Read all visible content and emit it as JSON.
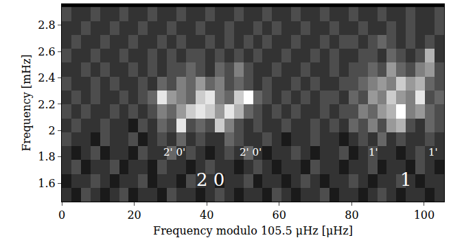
{
  "chart_data": {
    "type": "heatmap",
    "x_label": "Frequency modulo 105.5 μHz [μHz]",
    "y_label": "Frequency [mHz]",
    "xlim": [
      0,
      105.5
    ],
    "ylim": [
      1.46,
      2.96
    ],
    "xticks": [
      0,
      20,
      40,
      60,
      80,
      100
    ],
    "yticks": [
      1.6,
      1.8,
      2,
      2.2,
      2.4,
      2.6,
      2.8
    ],
    "x": [
      1.32,
      3.96,
      6.59,
      9.23,
      11.87,
      14.51,
      17.14,
      19.78,
      22.42,
      25.06,
      27.69,
      30.33,
      32.97,
      35.61,
      38.24,
      40.88,
      43.52,
      46.16,
      48.79,
      51.43,
      54.07,
      56.71,
      59.34,
      61.98,
      64.62,
      67.26,
      69.89,
      72.53,
      75.17,
      77.81,
      80.44,
      83.08,
      85.72,
      88.36,
      90.99,
      93.63,
      96.27,
      98.91,
      101.54,
      104.18
    ],
    "y": [
      1.513,
      1.619,
      1.724,
      1.83,
      1.935,
      2.041,
      2.146,
      2.252,
      2.357,
      2.463,
      2.568,
      2.674,
      2.779,
      2.885
    ],
    "z": [
      [
        2,
        1,
        3,
        2,
        1,
        2,
        3,
        1,
        2,
        2,
        1,
        3,
        2,
        2,
        1,
        2,
        3,
        2,
        1,
        2,
        2,
        1,
        3,
        2,
        1,
        2,
        2,
        3,
        1,
        2,
        2,
        1,
        2,
        3,
        2,
        1,
        2,
        2,
        1,
        2
      ],
      [
        1,
        2,
        2,
        3,
        2,
        1,
        2,
        2,
        3,
        1,
        2,
        2,
        1,
        3,
        2,
        2,
        1,
        2,
        2,
        3,
        1,
        2,
        2,
        1,
        2,
        3,
        2,
        1,
        2,
        2,
        3,
        2,
        1,
        2,
        2,
        3,
        2,
        1,
        2,
        2
      ],
      [
        2,
        3,
        1,
        2,
        2,
        3,
        1,
        2,
        2,
        1,
        3,
        2,
        2,
        1,
        2,
        3,
        2,
        2,
        1,
        2,
        3,
        2,
        1,
        2,
        2,
        1,
        3,
        2,
        2,
        1,
        2,
        2,
        3,
        1,
        2,
        2,
        1,
        3,
        2,
        1
      ],
      [
        2,
        1,
        2,
        3,
        1,
        2,
        2,
        1,
        3,
        2,
        2,
        4,
        2,
        3,
        2,
        1,
        2,
        3,
        2,
        4,
        2,
        1,
        2,
        2,
        3,
        2,
        1,
        2,
        2,
        3,
        1,
        2,
        3,
        2,
        2,
        1,
        2,
        3,
        2,
        2
      ],
      [
        3,
        2,
        2,
        1,
        3,
        2,
        2,
        3,
        1,
        2,
        3,
        2,
        4,
        2,
        3,
        2,
        2,
        4,
        3,
        2,
        2,
        3,
        2,
        1,
        2,
        2,
        3,
        2,
        2,
        1,
        2,
        3,
        2,
        4,
        2,
        3,
        2,
        2,
        3,
        2
      ],
      [
        2,
        3,
        2,
        2,
        3,
        2,
        2,
        1,
        3,
        2,
        4,
        3,
        9,
        3,
        4,
        3,
        8,
        5,
        3,
        2,
        3,
        2,
        2,
        3,
        2,
        2,
        3,
        2,
        3,
        2,
        4,
        3,
        5,
        3,
        6,
        7,
        3,
        2,
        4,
        3
      ],
      [
        3,
        2,
        3,
        2,
        2,
        3,
        2,
        3,
        2,
        3,
        5,
        4,
        6,
        8,
        9,
        8,
        6,
        9,
        7,
        4,
        3,
        2,
        3,
        2,
        3,
        2,
        2,
        3,
        2,
        3,
        3,
        5,
        4,
        6,
        7,
        10,
        5,
        6,
        4,
        3
      ],
      [
        2,
        3,
        2,
        3,
        2,
        2,
        3,
        2,
        3,
        4,
        9,
        6,
        5,
        4,
        8,
        9,
        5,
        4,
        8,
        10,
        4,
        3,
        2,
        3,
        2,
        3,
        2,
        3,
        3,
        2,
        4,
        3,
        6,
        5,
        8,
        6,
        5,
        9,
        3,
        4
      ],
      [
        3,
        2,
        2,
        3,
        2,
        3,
        2,
        2,
        3,
        2,
        4,
        3,
        5,
        4,
        6,
        4,
        5,
        3,
        4,
        3,
        2,
        3,
        2,
        2,
        3,
        2,
        3,
        2,
        2,
        3,
        3,
        4,
        5,
        6,
        5,
        8,
        6,
        7,
        4,
        3
      ],
      [
        2,
        2,
        3,
        2,
        3,
        2,
        2,
        3,
        2,
        3,
        2,
        3,
        3,
        4,
        3,
        2,
        4,
        3,
        5,
        3,
        2,
        2,
        3,
        2,
        2,
        3,
        2,
        2,
        3,
        2,
        3,
        3,
        4,
        3,
        6,
        4,
        3,
        5,
        6,
        3
      ],
      [
        3,
        2,
        2,
        3,
        2,
        2,
        3,
        2,
        2,
        3,
        2,
        3,
        2,
        3,
        3,
        2,
        3,
        2,
        3,
        2,
        3,
        2,
        2,
        3,
        2,
        2,
        3,
        2,
        3,
        2,
        2,
        3,
        3,
        2,
        4,
        3,
        2,
        3,
        7,
        2
      ],
      [
        2,
        3,
        2,
        2,
        3,
        2,
        2,
        3,
        2,
        2,
        3,
        2,
        3,
        2,
        2,
        3,
        2,
        3,
        2,
        3,
        2,
        3,
        2,
        2,
        3,
        2,
        2,
        3,
        2,
        3,
        3,
        2,
        3,
        4,
        3,
        2,
        3,
        2,
        3,
        2
      ],
      [
        2,
        2,
        3,
        2,
        2,
        3,
        2,
        2,
        3,
        2,
        2,
        3,
        2,
        2,
        3,
        2,
        2,
        3,
        2,
        2,
        3,
        2,
        3,
        2,
        2,
        3,
        2,
        2,
        3,
        2,
        2,
        3,
        2,
        2,
        3,
        2,
        3,
        2,
        2,
        3
      ],
      [
        3,
        2,
        2,
        3,
        2,
        2,
        3,
        2,
        2,
        3,
        2,
        2,
        3,
        2,
        2,
        3,
        2,
        2,
        3,
        2,
        2,
        3,
        2,
        2,
        3,
        2,
        2,
        3,
        2,
        2,
        3,
        2,
        2,
        3,
        2,
        2,
        3,
        2,
        2,
        3
      ]
    ],
    "zlim": [
      0,
      10
    ],
    "color": "gray",
    "annotations": [
      {
        "text": "2' 0'",
        "x": 31,
        "y": 1.835
      },
      {
        "text": "2' 0'",
        "x": 52,
        "y": 1.835
      },
      {
        "text": "1'",
        "x": 86,
        "y": 1.835
      },
      {
        "text": "1'",
        "x": 102.5,
        "y": 1.835
      },
      {
        "text": "2 0",
        "x": 41,
        "y": 1.625
      },
      {
        "text": "1",
        "x": 95,
        "y": 1.625
      }
    ]
  }
}
